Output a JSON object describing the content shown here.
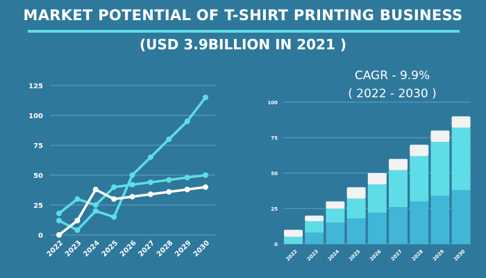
{
  "header": {
    "title": "MARKET POTENTIAL OF T-SHIRT PRINTING BUSINESS",
    "subtitle": "(USD 3.9BILLION IN 2021 )"
  },
  "cagr": {
    "line1": "CAGR - 9.9%",
    "line2": "( 2022 - 2030 )"
  },
  "colors": {
    "background": "#2e789c",
    "cyan": "#5fdde6",
    "white": "#ffffff",
    "bar_bottom": "#41b6d6",
    "bar_mid": "#5fdde6",
    "bar_top": "#f2f2f2",
    "grid": "#5ba6c8"
  },
  "chart_data": [
    {
      "type": "line",
      "categories": [
        "2022",
        "2023",
        "2024",
        "2025",
        "2026",
        "2027",
        "2028",
        "2029",
        "2030"
      ],
      "ylim": [
        0,
        125
      ],
      "yticks": [
        "0",
        "25",
        "50",
        "75",
        "100",
        "125"
      ],
      "grid": true,
      "series": [
        {
          "name": "series-a",
          "color": "#5fdde6",
          "values": [
            12,
            4,
            20,
            15,
            50,
            65,
            80,
            95,
            115
          ]
        },
        {
          "name": "series-b",
          "color": "#5fdde6",
          "values": [
            18,
            30,
            25,
            40,
            42,
            44,
            46,
            48,
            50
          ]
        },
        {
          "name": "series-c",
          "color": "#ffffff",
          "values": [
            0,
            12,
            38,
            30,
            32,
            34,
            36,
            38,
            40
          ]
        }
      ]
    },
    {
      "type": "bar",
      "stacked": true,
      "categories": [
        "2022",
        "2023",
        "2024",
        "2025",
        "2026",
        "2027",
        "2028",
        "2029",
        "2030"
      ],
      "ylim": [
        0,
        100
      ],
      "yticks": [
        "0",
        "25",
        "50",
        "75",
        "100"
      ],
      "grid": true,
      "series": [
        {
          "name": "bottom",
          "color": "#41b6d6",
          "values": [
            0,
            8,
            15,
            18,
            22,
            26,
            30,
            34,
            38
          ]
        },
        {
          "name": "middle",
          "color": "#5fdde6",
          "values": [
            5,
            8,
            10,
            14,
            20,
            26,
            32,
            38,
            44
          ]
        },
        {
          "name": "top",
          "color": "#f2f2f2",
          "values": [
            5,
            4,
            5,
            8,
            8,
            8,
            8,
            8,
            8
          ]
        }
      ]
    }
  ]
}
